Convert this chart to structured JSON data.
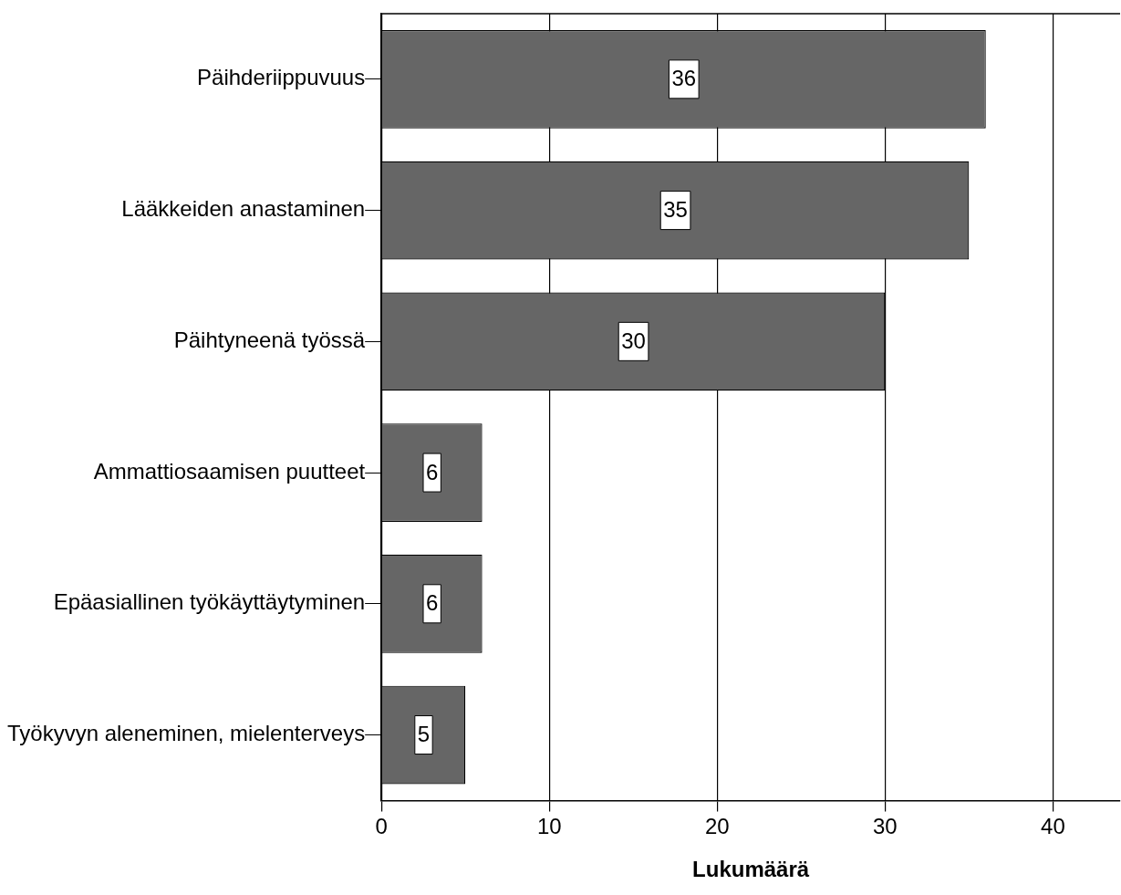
{
  "chart_data": {
    "type": "bar",
    "orientation": "horizontal",
    "xlabel": "Lukumäärä",
    "categories": [
      "Päihderiippuvuus",
      "Lääkkeiden anastaminen",
      "Päihtyneenä työssä",
      "Ammattiosaamisen puutteet",
      "Epäasiallinen työkäyttäytyminen",
      "Työkyvyn aleneminen, mielenterveys"
    ],
    "values": [
      36,
      35,
      30,
      6,
      6,
      5
    ],
    "color": "#666666",
    "xlim": [
      0,
      44
    ],
    "xticks": [
      0,
      10,
      20,
      30,
      40
    ],
    "grid": "x",
    "data_labels": true,
    "legend": false
  }
}
